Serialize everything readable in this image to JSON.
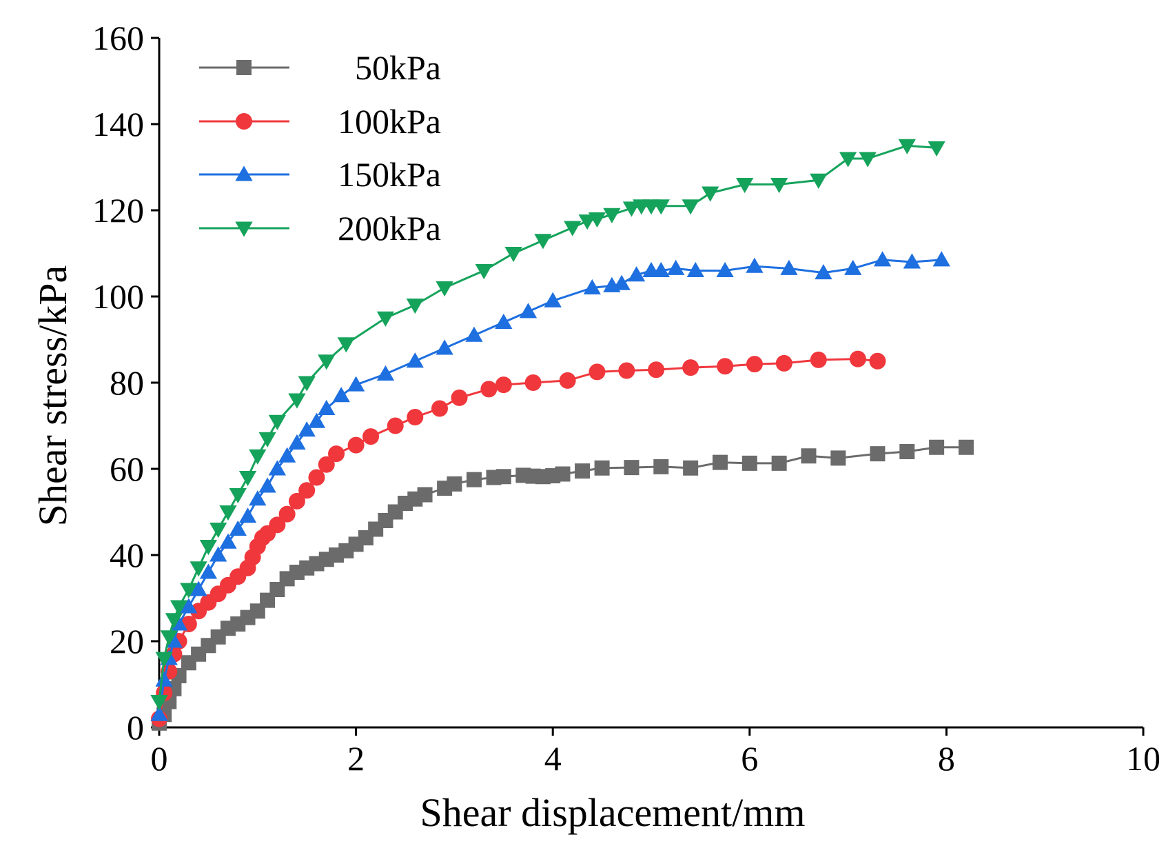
{
  "colors": {
    "background": "#ffffff",
    "axis": "#000000",
    "s50": "#6b6b6b",
    "s100": "#f0373c",
    "s150": "#1e6fe0",
    "s200": "#15a35b"
  },
  "chart_data": {
    "type": "line",
    "title": "",
    "xlabel": "Shear displacement/mm",
    "ylabel": "Shear stress/kPa",
    "xlim": [
      0,
      10
    ],
    "ylim": [
      0,
      160
    ],
    "xticks": [
      "0",
      "2",
      "4",
      "6",
      "8",
      "10"
    ],
    "yticks": [
      "0",
      "20",
      "40",
      "60",
      "80",
      "100",
      "120",
      "140",
      "160"
    ],
    "xtick_values": [
      0,
      2,
      4,
      6,
      8,
      10
    ],
    "ytick_values": [
      0,
      20,
      40,
      60,
      80,
      100,
      120,
      140,
      160
    ],
    "legend_position": "top-left",
    "series": [
      {
        "name": "50kPa",
        "marker": "square",
        "color": "#6b6b6b",
        "x": [
          0.0,
          0.05,
          0.1,
          0.15,
          0.2,
          0.3,
          0.4,
          0.5,
          0.6,
          0.7,
          0.8,
          0.9,
          1.0,
          1.1,
          1.2,
          1.3,
          1.4,
          1.5,
          1.6,
          1.7,
          1.8,
          1.9,
          2.0,
          2.1,
          2.2,
          2.3,
          2.4,
          2.5,
          2.6,
          2.7,
          2.9,
          3.0,
          3.2,
          3.4,
          3.5,
          3.7,
          3.8,
          3.9,
          4.0,
          4.1,
          4.3,
          4.5,
          4.8,
          5.1,
          5.4,
          5.7,
          6.0,
          6.3,
          6.6,
          6.9,
          7.3,
          7.6,
          7.9,
          8.2
        ],
        "y": [
          1.0,
          3.0,
          6.0,
          9.0,
          12.0,
          15.0,
          17.0,
          19.0,
          21.0,
          23.0,
          24.0,
          25.5,
          27.0,
          29.5,
          32.0,
          34.5,
          36.0,
          37.0,
          38.0,
          39.0,
          40.0,
          41.0,
          42.5,
          44.0,
          46.0,
          48.0,
          50.0,
          52.0,
          53.0,
          54.0,
          55.5,
          56.5,
          57.5,
          58.0,
          58.2,
          58.5,
          58.3,
          58.2,
          58.4,
          58.8,
          59.5,
          60.2,
          60.3,
          60.5,
          60.2,
          61.5,
          61.3,
          61.3,
          63.0,
          62.5,
          63.5,
          64.0,
          65.0,
          65.0
        ]
      },
      {
        "name": "100kPa",
        "marker": "circle",
        "color": "#f0373c",
        "x": [
          0.0,
          0.05,
          0.1,
          0.15,
          0.2,
          0.3,
          0.4,
          0.5,
          0.6,
          0.7,
          0.8,
          0.9,
          0.95,
          1.0,
          1.05,
          1.1,
          1.2,
          1.3,
          1.4,
          1.5,
          1.6,
          1.7,
          1.8,
          2.0,
          2.15,
          2.4,
          2.6,
          2.85,
          3.05,
          3.35,
          3.5,
          3.8,
          4.15,
          4.45,
          4.75,
          5.05,
          5.4,
          5.75,
          6.05,
          6.35,
          6.7,
          7.1,
          7.3
        ],
        "y": [
          2.0,
          8.0,
          13.0,
          17.0,
          20.0,
          24.0,
          27.0,
          29.0,
          31.0,
          33.0,
          35.0,
          37.0,
          39.5,
          42.0,
          44.0,
          45.0,
          47.0,
          49.5,
          52.5,
          55.0,
          58.0,
          61.0,
          63.5,
          65.5,
          67.5,
          70.0,
          72.0,
          74.0,
          76.5,
          78.5,
          79.5,
          80.0,
          80.5,
          82.5,
          82.8,
          83.0,
          83.5,
          83.8,
          84.3,
          84.5,
          85.3,
          85.5,
          85.0
        ]
      },
      {
        "name": "150kPa",
        "marker": "triangle-up",
        "color": "#1e6fe0",
        "x": [
          0.0,
          0.05,
          0.1,
          0.15,
          0.2,
          0.3,
          0.4,
          0.5,
          0.6,
          0.7,
          0.8,
          0.9,
          1.0,
          1.1,
          1.2,
          1.3,
          1.4,
          1.5,
          1.6,
          1.7,
          1.85,
          2.0,
          2.3,
          2.6,
          2.9,
          3.2,
          3.5,
          3.75,
          4.0,
          4.4,
          4.6,
          4.7,
          4.85,
          5.0,
          5.1,
          5.25,
          5.45,
          5.75,
          6.05,
          6.4,
          6.75,
          7.05,
          7.35,
          7.65,
          7.95
        ],
        "y": [
          3.0,
          11.0,
          16.0,
          20.0,
          24.0,
          28.0,
          32.0,
          36.0,
          40.0,
          43.0,
          46.0,
          49.0,
          53.0,
          56.0,
          60.0,
          63.0,
          66.0,
          69.0,
          71.0,
          74.0,
          77.0,
          79.5,
          82.0,
          85.0,
          88.0,
          91.0,
          94.0,
          96.5,
          99.0,
          102.0,
          102.5,
          103.0,
          105.0,
          106.0,
          106.0,
          106.5,
          106.0,
          106.0,
          107.0,
          106.5,
          105.5,
          106.5,
          108.5,
          108.0,
          108.5
        ]
      },
      {
        "name": "200kPa",
        "marker": "triangle-down",
        "color": "#15a35b",
        "x": [
          0.0,
          0.05,
          0.1,
          0.15,
          0.2,
          0.3,
          0.4,
          0.5,
          0.6,
          0.7,
          0.8,
          0.9,
          1.0,
          1.1,
          1.2,
          1.4,
          1.5,
          1.7,
          1.9,
          2.3,
          2.6,
          2.9,
          3.3,
          3.6,
          3.9,
          4.2,
          4.35,
          4.45,
          4.6,
          4.8,
          4.9,
          5.0,
          5.1,
          5.4,
          5.6,
          5.95,
          6.3,
          6.7,
          7.0,
          7.2,
          7.6,
          7.9
        ],
        "y": [
          6.0,
          16.0,
          21.0,
          25.0,
          28.0,
          32.0,
          37.0,
          42.0,
          46.0,
          50.0,
          54.0,
          58.0,
          63.0,
          67.0,
          71.0,
          76.0,
          80.0,
          85.0,
          89.0,
          95.0,
          98.0,
          102.0,
          106.0,
          110.0,
          113.0,
          116.0,
          117.5,
          118.0,
          119.0,
          120.5,
          121.0,
          121.0,
          121.0,
          121.0,
          124.0,
          126.0,
          126.0,
          127.0,
          132.0,
          132.0,
          135.0,
          134.5
        ]
      }
    ]
  }
}
